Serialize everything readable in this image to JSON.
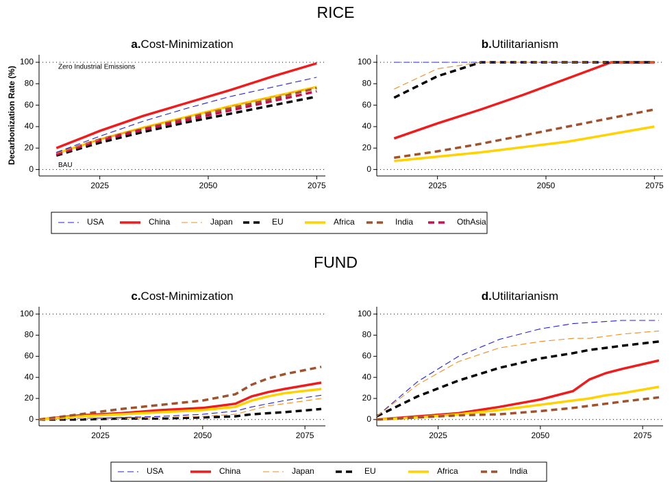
{
  "sections": [
    "RICE",
    "FUND"
  ],
  "chart_data": [
    {
      "type": "line",
      "panel": "a.",
      "title": "Cost-Minimization",
      "y_label": "Decarbonization Rate (%)",
      "annotations": [
        "Zero Industrial Emissions",
        "BAU"
      ],
      "x": [
        2015,
        2025,
        2035,
        2045,
        2055,
        2065,
        2075
      ],
      "xlim": [
        2011,
        2077
      ],
      "xticks": [
        2025,
        2050,
        2075
      ],
      "ylim": [
        -6,
        107
      ],
      "yticks": [
        0,
        20,
        40,
        60,
        80,
        100
      ],
      "hlines": [
        0,
        100
      ],
      "series": [
        {
          "name": "USA",
          "color": "#1f1fe0",
          "style": "thin-dash",
          "values": [
            16,
            31,
            45,
            57,
            68,
            77,
            86
          ]
        },
        {
          "name": "China",
          "color": "#ee1c1c",
          "style": "thick-solid",
          "values": [
            20,
            36,
            50,
            62,
            74,
            87,
            99
          ]
        },
        {
          "name": "Japan",
          "color": "#f08c1e",
          "style": "thin-dash",
          "values": [
            15,
            28,
            39,
            49,
            59,
            68,
            77
          ]
        },
        {
          "name": "EU",
          "color": "#000000",
          "style": "thick-dash",
          "values": [
            13,
            25,
            35,
            44,
            52,
            60,
            68
          ]
        },
        {
          "name": "Africa",
          "color": "#ffd200",
          "style": "thick-solid",
          "values": [
            15,
            28,
            39,
            49,
            59,
            68,
            77
          ]
        },
        {
          "name": "India",
          "color": "#a0522d",
          "style": "thick-dash",
          "values": [
            15,
            28,
            38,
            48,
            57,
            66,
            76
          ]
        },
        {
          "name": "OthAsia",
          "color": "#c8104e",
          "style": "thick-dash",
          "values": [
            14,
            27,
            37,
            46,
            55,
            64,
            73
          ]
        }
      ]
    },
    {
      "type": "line",
      "panel": "b.",
      "title": "Utilitarianism",
      "x": [
        2015,
        2025,
        2035,
        2045,
        2055,
        2065,
        2075
      ],
      "xlim": [
        2011,
        2077
      ],
      "xticks": [
        2025,
        2050,
        2075
      ],
      "ylim": [
        -6,
        107
      ],
      "yticks": [
        0,
        20,
        40,
        60,
        80,
        100
      ],
      "hlines": [
        0,
        100
      ],
      "series": [
        {
          "name": "USA",
          "color": "#1f1fe0",
          "style": "thin-dash",
          "values": [
            100,
            100,
            100,
            100,
            100,
            100,
            100
          ]
        },
        {
          "name": "China",
          "color": "#ee1c1c",
          "style": "thick-solid",
          "values": [
            29,
            43,
            56,
            70,
            85,
            100,
            100
          ]
        },
        {
          "name": "Japan",
          "color": "#f08c1e",
          "style": "thin-dash",
          "values": [
            75,
            94,
            100,
            100,
            100,
            100,
            100
          ]
        },
        {
          "name": "EU",
          "color": "#000000",
          "style": "thick-dash",
          "values": [
            67,
            87,
            100,
            100,
            100,
            100,
            100
          ]
        },
        {
          "name": "Africa",
          "color": "#ffd200",
          "style": "thick-solid",
          "values": [
            8,
            12,
            16,
            21,
            26,
            33,
            40
          ]
        },
        {
          "name": "India",
          "color": "#a0522d",
          "style": "thick-dash",
          "values": [
            11,
            17,
            24,
            32,
            40,
            48,
            56
          ]
        }
      ]
    },
    {
      "type": "line",
      "panel": "c.",
      "title": "Cost-Minimization",
      "x": [
        2010,
        2020,
        2030,
        2040,
        2050,
        2058,
        2062,
        2066,
        2070,
        2079
      ],
      "xlim": [
        2010,
        2080
      ],
      "xticks": [
        2025,
        2050,
        2075
      ],
      "ylim": [
        -6,
        107
      ],
      "yticks": [
        0,
        20,
        40,
        60,
        80,
        100
      ],
      "hlines": [
        0,
        100
      ],
      "series": [
        {
          "name": "USA",
          "color": "#1f1fe0",
          "style": "thin-dash",
          "values": [
            0,
            1,
            2,
            3,
            5,
            8,
            12,
            15,
            18,
            23
          ]
        },
        {
          "name": "China",
          "color": "#ee1c1c",
          "style": "thick-solid",
          "values": [
            0,
            4,
            6,
            9,
            11,
            15,
            22,
            26,
            29,
            35
          ]
        },
        {
          "name": "Japan",
          "color": "#f08c1e",
          "style": "thin-dash",
          "values": [
            0,
            1,
            1,
            2,
            3,
            5,
            9,
            13,
            15,
            20
          ]
        },
        {
          "name": "EU",
          "color": "#000000",
          "style": "thick-dash",
          "values": [
            0,
            0,
            1,
            1,
            2,
            3,
            5,
            6,
            7,
            10
          ]
        },
        {
          "name": "Africa",
          "color": "#ffd200",
          "style": "thick-solid",
          "values": [
            0,
            3,
            5,
            7,
            9,
            12,
            18,
            22,
            25,
            29
          ]
        },
        {
          "name": "India",
          "color": "#a0522d",
          "style": "thick-dash",
          "values": [
            0,
            5,
            10,
            14,
            18,
            24,
            33,
            39,
            43,
            50
          ]
        }
      ]
    },
    {
      "type": "line",
      "panel": "d.",
      "title": "Utilitarianism",
      "x": [
        2010,
        2020,
        2030,
        2040,
        2050,
        2058,
        2062,
        2066,
        2070,
        2079
      ],
      "xlim": [
        2010,
        2080
      ],
      "xticks": [
        2025,
        2050,
        2075
      ],
      "ylim": [
        -6,
        107
      ],
      "yticks": [
        0,
        20,
        40,
        60,
        80,
        100
      ],
      "hlines": [
        0,
        100
      ],
      "series": [
        {
          "name": "USA",
          "color": "#1f1fe0",
          "style": "thin-dash",
          "values": [
            3,
            36,
            60,
            76,
            86,
            91,
            92,
            93,
            94,
            94
          ]
        },
        {
          "name": "China",
          "color": "#ee1c1c",
          "style": "thick-solid",
          "values": [
            0,
            3,
            6,
            12,
            19,
            27,
            38,
            44,
            48,
            56
          ]
        },
        {
          "name": "Japan",
          "color": "#f08c1e",
          "style": "thin-dash",
          "values": [
            3,
            33,
            55,
            68,
            74,
            77,
            77,
            79,
            81,
            84
          ]
        },
        {
          "name": "EU",
          "color": "#000000",
          "style": "thick-dash",
          "values": [
            3,
            22,
            37,
            49,
            58,
            63,
            66,
            68,
            70,
            74
          ]
        },
        {
          "name": "Africa",
          "color": "#ffd200",
          "style": "thick-solid",
          "values": [
            0,
            2,
            5,
            9,
            14,
            18,
            20,
            23,
            25,
            31
          ]
        },
        {
          "name": "India",
          "color": "#a0522d",
          "style": "thick-dash",
          "values": [
            0,
            2,
            4,
            5,
            8,
            11,
            13,
            15,
            17,
            21
          ]
        }
      ]
    }
  ]
}
